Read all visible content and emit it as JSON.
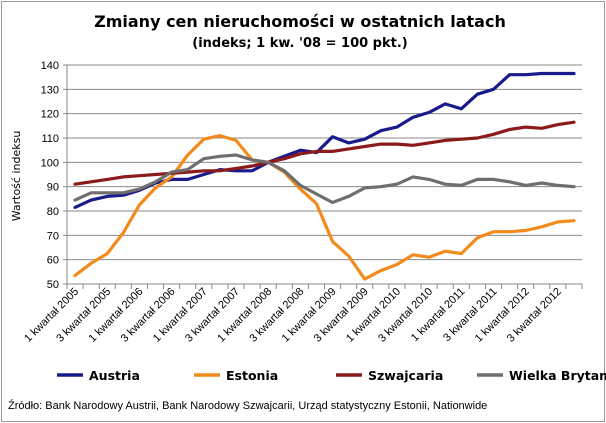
{
  "chart_data": {
    "type": "line",
    "title": "Zmiany cen nieruchomości w ostatnich latach",
    "subtitle": "(indeks; 1 kw. '08 = 100 pkt.)",
    "ylabel": "Wartość indeksu",
    "xlabel": "",
    "ylim": [
      50,
      140
    ],
    "yticks": [
      50,
      60,
      70,
      80,
      90,
      100,
      110,
      120,
      130,
      140
    ],
    "grid": true,
    "legend_position": "bottom",
    "x": [
      "1 kwartał 2005",
      "2 kwartał 2005",
      "3 kwartał 2005",
      "4 kwartał 2005",
      "1 kwartał 2006",
      "2 kwartał 2006",
      "3 kwartał 2006",
      "4 kwartał 2006",
      "1 kwartał 2007",
      "2 kwartał 2007",
      "3 kwartał 2007",
      "4 kwartał 2007",
      "1 kwartał 2008",
      "2 kwartał 2008",
      "3 kwartał 2008",
      "4 kwartał 2008",
      "1 kwartał 2009",
      "2 kwartał 2009",
      "3 kwartał 2009",
      "4 kwartał 2009",
      "1 kwartał 2010",
      "2 kwartał 2010",
      "3 kwartał 2010",
      "4 kwartał 2010",
      "1 kwartał 2011",
      "2 kwartał 2011",
      "3 kwartał 2011",
      "4 kwartał 2011",
      "1 kwartał 2012",
      "2 kwartał 2012",
      "3 kwartał 2012",
      "4 kwartał 2012"
    ],
    "xtick_labels": [
      "1 kwartał 2005",
      "3 kwartał 2005",
      "1 kwartał 2006",
      "3 kwartał 2006",
      "1 kwartał 2007",
      "3 kwartał 2007",
      "1 kwartał 2008",
      "3 kwartał 2008",
      "1 kwartał 2009",
      "3 kwartał 2009",
      "1 kwartał 2010",
      "3 kwartał 2010",
      "1 kwartał 2011",
      "3 kwartał 2011",
      "1 kwartał 2012",
      "3 kwartał 2012"
    ],
    "series": [
      {
        "name": "Austria",
        "color": "#1a1a8c",
        "values": [
          81.5,
          84.5,
          86,
          86.5,
          88.5,
          91.5,
          93,
          93,
          95,
          97,
          96.5,
          96.5,
          100,
          102.5,
          105,
          104,
          110.5,
          108,
          109.5,
          113,
          114.5,
          118.5,
          120.5,
          124,
          122,
          128,
          130,
          136,
          136,
          136.5,
          136.5,
          136.5
        ]
      },
      {
        "name": "Estonia",
        "color": "#f28a1c",
        "values": [
          53.5,
          58.5,
          62.5,
          71,
          82.5,
          89.5,
          94,
          103,
          109.5,
          111,
          109,
          101,
          100,
          96,
          89,
          83,
          67.5,
          61.5,
          52,
          55.5,
          58,
          62,
          61,
          63.5,
          62.5,
          69,
          71.5,
          71.5,
          72,
          73.5,
          75.5,
          76
        ]
      },
      {
        "name": "Szwajcaria",
        "color": "#8b1a1a",
        "values": [
          91,
          92,
          93,
          94,
          94.5,
          95,
          95.5,
          96,
          96.5,
          96.5,
          97.5,
          98.5,
          100,
          101.5,
          103.5,
          104.5,
          104.5,
          105.5,
          106.5,
          107.5,
          107.5,
          107,
          108,
          109,
          109.5,
          110,
          111.5,
          113.5,
          114.5,
          114,
          115.5,
          116.5
        ]
      },
      {
        "name": "Wielka Brytania",
        "color": "#6e6e6e",
        "values": [
          84.5,
          87.5,
          87.5,
          87.5,
          89,
          92,
          96,
          97,
          101.5,
          102.5,
          103,
          101,
          100,
          96.5,
          90.5,
          87,
          83.5,
          86,
          89.5,
          90,
          91,
          94,
          93,
          91,
          90.5,
          93,
          93,
          92,
          90.5,
          91.5,
          90.5,
          90
        ]
      }
    ]
  },
  "legend": {
    "items": [
      {
        "label": "Austria",
        "color": "#1a1a8c"
      },
      {
        "label": "Estonia",
        "color": "#f28a1c"
      },
      {
        "label": "Szwajcaria",
        "color": "#8b1a1a"
      },
      {
        "label": "Wielka Brytania",
        "color": "#6e6e6e"
      }
    ]
  },
  "source": "Źródło: Bank Narodowy Austrii, Bank Narodowy Szwajcarii, Urząd statystyczny Estonii, Nationwide"
}
